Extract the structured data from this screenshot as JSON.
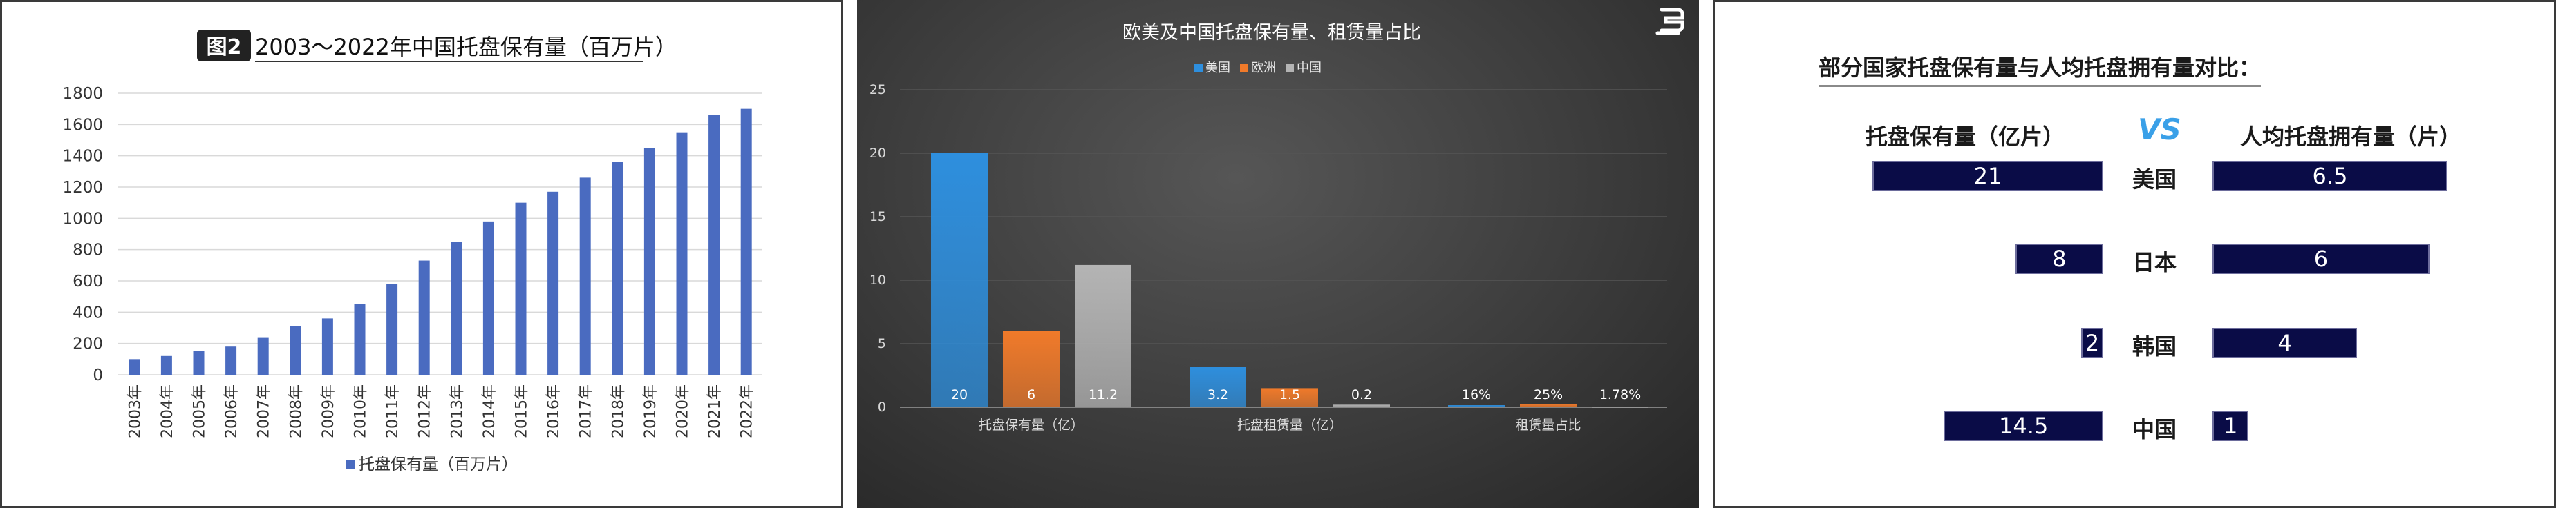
{
  "chart_data": [
    {
      "type": "bar",
      "title_badge": "图2",
      "title": "2003～2022年中国托盘保有量（百万片）",
      "categories": [
        "2003年",
        "2004年",
        "2005年",
        "2006年",
        "2007年",
        "2008年",
        "2009年",
        "2010年",
        "2011年",
        "2012年",
        "2013年",
        "2014年",
        "2015年",
        "2016年",
        "2017年",
        "2018年",
        "2019年",
        "2020年",
        "2021年",
        "2022年"
      ],
      "series": [
        {
          "name": "托盘保有量（百万片）",
          "values": [
            100,
            120,
            150,
            180,
            240,
            310,
            360,
            450,
            580,
            730,
            850,
            980,
            1100,
            1170,
            1260,
            1360,
            1450,
            1550,
            1660,
            1700
          ]
        }
      ],
      "ylim": [
        0,
        1800
      ],
      "yticks": [
        0,
        200,
        400,
        600,
        800,
        1000,
        1200,
        1400,
        1600,
        1800
      ],
      "grid": true,
      "legend": "bottom",
      "colors": {
        "bar": "#4a6bc0"
      }
    },
    {
      "type": "bar",
      "title": "欧美及中国托盘保有量、租赁量占比",
      "categories": [
        "托盘保有量（亿）",
        "托盘租赁量（亿）",
        "租赁量占比"
      ],
      "series": [
        {
          "name": "美国",
          "values": [
            20,
            3.2,
            0.16
          ],
          "labels": [
            "20",
            "3.2",
            "16%"
          ]
        },
        {
          "name": "欧洲",
          "values": [
            6,
            1.5,
            0.25
          ],
          "labels": [
            "6",
            "1.5",
            "25%"
          ]
        },
        {
          "name": "中国",
          "values": [
            11.2,
            0.2,
            0.0178
          ],
          "labels": [
            "11.2",
            "0.2",
            "1.78%"
          ]
        }
      ],
      "ylim": [
        0,
        25
      ],
      "yticks": [
        0,
        5,
        10,
        15,
        20,
        25
      ],
      "grid": true,
      "legend": "top",
      "colors": {
        "美国": "#2e8fde",
        "欧洲": "#f07a2a",
        "中国": "#b4b4b4"
      }
    },
    {
      "type": "bar",
      "title": "部分国家托盘保有量与人均托盘拥有量对比：",
      "left_header": "托盘保有量（亿片）",
      "vs": "VS",
      "right_header": "人均托盘拥有量（片）",
      "categories": [
        "美国",
        "日本",
        "韩国",
        "中国"
      ],
      "series": [
        {
          "name": "托盘保有量（亿片）",
          "values": [
            21,
            8,
            2,
            14.5
          ],
          "labels": [
            "21",
            "8",
            "2",
            "14.5"
          ]
        },
        {
          "name": "人均托盘拥有量（片）",
          "values": [
            6.5,
            6,
            4,
            1
          ],
          "labels": [
            "6.5",
            "6",
            "4",
            "1"
          ]
        }
      ],
      "colors": {
        "bar": "#0a0c47",
        "vs": "#3aa0e8"
      }
    }
  ]
}
